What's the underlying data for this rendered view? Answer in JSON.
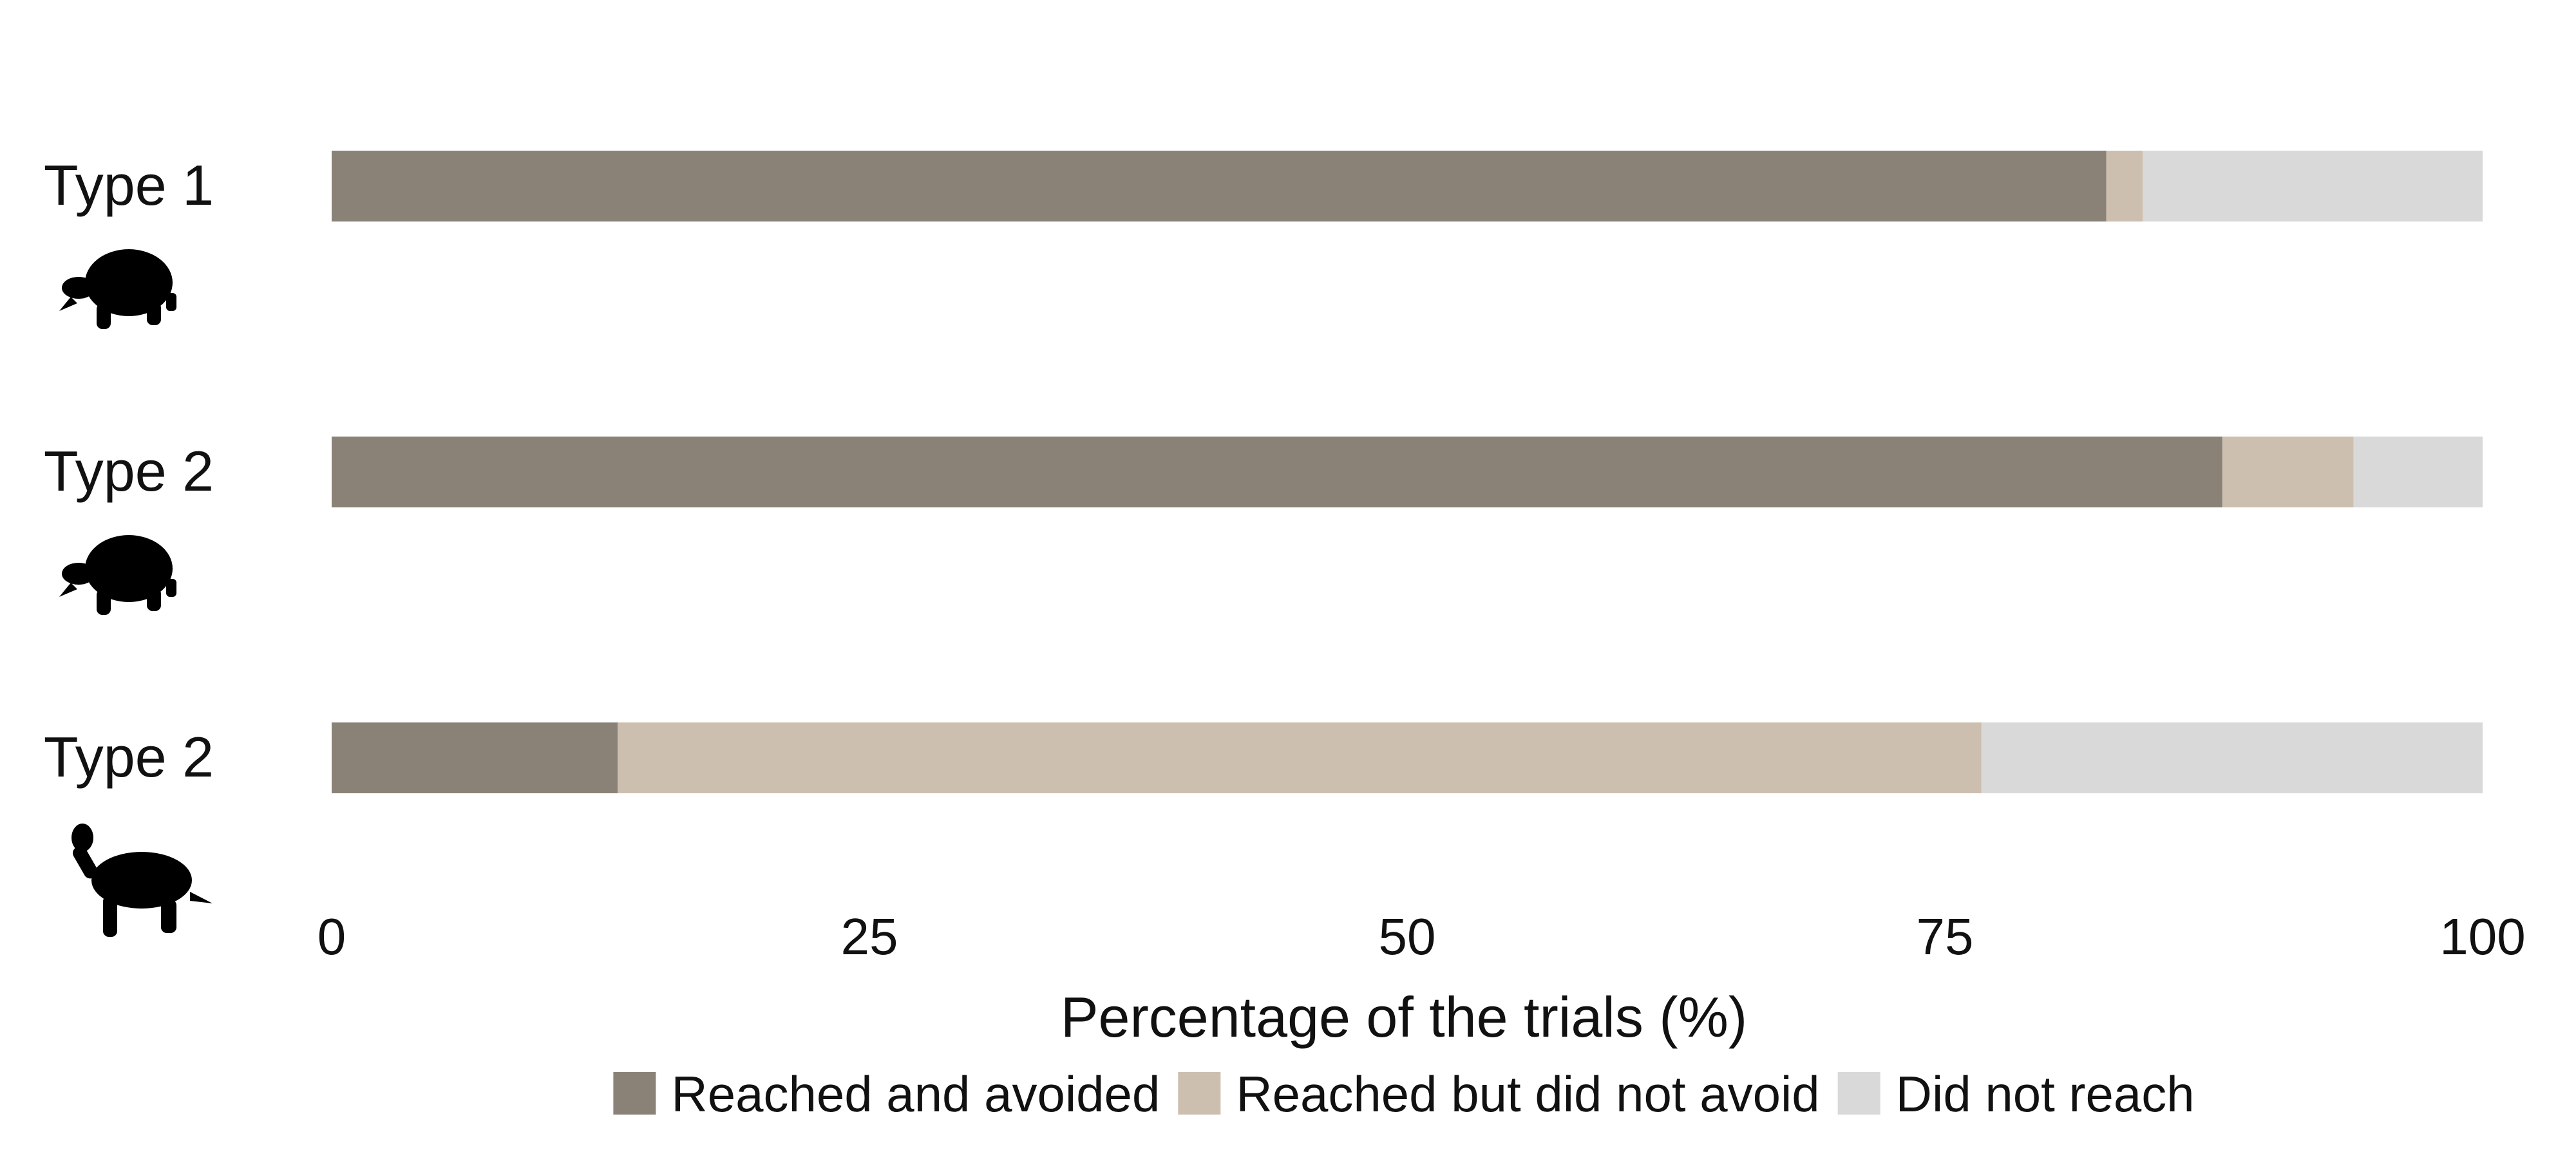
{
  "chart_data": {
    "type": "bar",
    "orientation": "horizontal",
    "stacked": true,
    "categories": [
      "Type 1",
      "Type 2",
      "Type 2"
    ],
    "category_icons": [
      "tortoise-icon",
      "tortoise-icon",
      "turtle-icon"
    ],
    "series": [
      {
        "name": "Reached and avoided",
        "color": "#8b8277",
        "values": [
          82.5,
          87.9,
          13.3
        ]
      },
      {
        "name": "Reached but did not avoid",
        "color": "#cdbfaf",
        "values": [
          1.7,
          6.1,
          63.4
        ]
      },
      {
        "name": "Did not reach",
        "color": "#d9d9d9",
        "values": [
          15.8,
          6.0,
          23.3
        ]
      }
    ],
    "xlabel": "Percentage of the trials (%)",
    "ylabel": "",
    "xlim": [
      0,
      100
    ],
    "xticks": [
      0,
      25,
      50,
      75,
      100
    ],
    "xtick_labels": [
      "0",
      "25",
      "50",
      "75",
      "100"
    ],
    "grid": false,
    "legend_position": "bottom"
  }
}
